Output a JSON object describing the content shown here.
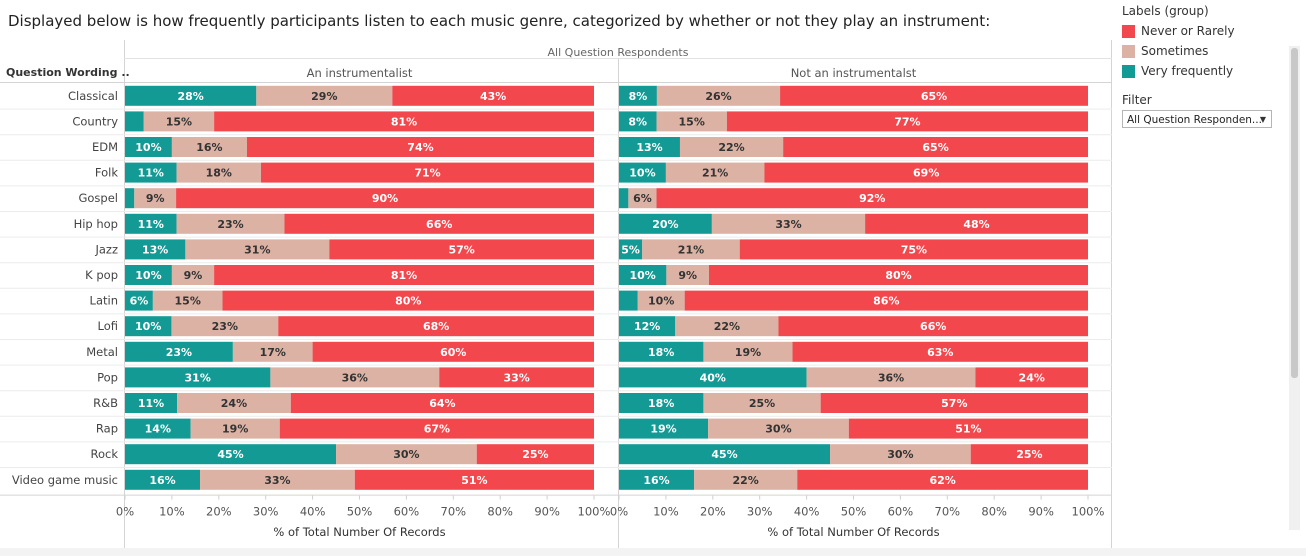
{
  "title": "Displayed below is how frequently participants listen to each music genre, categorized by whether or not they play an instrument:",
  "legend": {
    "title": "Labels (group)",
    "items": [
      {
        "label": "Never or Rarely",
        "color": "#f2484d"
      },
      {
        "label": "Sometimes",
        "color": "#dbb2a4"
      },
      {
        "label": "Very frequently",
        "color": "#149a94"
      }
    ]
  },
  "filter": {
    "title": "Filter",
    "value": "All Question Responden..."
  },
  "chart_data": {
    "type": "bar",
    "orientation": "horizontal",
    "stacked": true,
    "header": "All Question Respondents",
    "row_header": "Question Wording ..",
    "xlabel": "% of Total Number Of Records",
    "xlim": [
      0,
      100
    ],
    "x_ticks": [
      "0%",
      "10%",
      "20%",
      "30%",
      "40%",
      "50%",
      "60%",
      "70%",
      "80%",
      "90%",
      "100%"
    ],
    "categories": [
      "Classical",
      "Country",
      "EDM",
      "Folk",
      "Gospel",
      "Hip hop",
      "Jazz",
      "K pop",
      "Latin",
      "Lofi",
      "Metal",
      "Pop",
      "R&B",
      "Rap",
      "Rock",
      "Video game music"
    ],
    "series_order": [
      "Very frequently",
      "Sometimes",
      "Never or Rarely"
    ],
    "panels": [
      {
        "name": "An instrumentalist",
        "very_frequently": [
          28,
          4,
          10,
          11,
          2,
          11,
          13,
          10,
          6,
          10,
          23,
          31,
          11,
          14,
          45,
          16
        ],
        "sometimes": [
          29,
          15,
          16,
          18,
          9,
          23,
          31,
          9,
          15,
          23,
          17,
          36,
          24,
          19,
          30,
          33
        ],
        "never_or_rarely": [
          43,
          81,
          74,
          71,
          90,
          66,
          57,
          81,
          80,
          68,
          60,
          33,
          64,
          67,
          25,
          51
        ],
        "labels": {
          "very_frequently": [
            "28%",
            "",
            "10%",
            "11%",
            "",
            "11%",
            "13%",
            "10%",
            "6%",
            "10%",
            "23%",
            "31%",
            "11%",
            "14%",
            "45%",
            "16%"
          ],
          "sometimes": [
            "29%",
            "15%",
            "16%",
            "18%",
            "9%",
            "23%",
            "31%",
            "9%",
            "15%",
            "23%",
            "17%",
            "36%",
            "24%",
            "19%",
            "30%",
            "33%"
          ],
          "never_or_rarely": [
            "43%",
            "81%",
            "74%",
            "71%",
            "90%",
            "66%",
            "57%",
            "81%",
            "80%",
            "68%",
            "60%",
            "33%",
            "64%",
            "67%",
            "25%",
            "51%"
          ]
        }
      },
      {
        "name": "Not an instrumentalst",
        "very_frequently": [
          8,
          8,
          13,
          10,
          2,
          20,
          5,
          10,
          4,
          12,
          18,
          40,
          18,
          19,
          45,
          16
        ],
        "sometimes": [
          26,
          15,
          22,
          21,
          6,
          33,
          21,
          9,
          10,
          22,
          19,
          36,
          25,
          30,
          30,
          22
        ],
        "never_or_rarely": [
          65,
          77,
          65,
          69,
          92,
          48,
          75,
          80,
          86,
          66,
          63,
          24,
          57,
          51,
          25,
          62
        ],
        "labels": {
          "very_frequently": [
            "8%",
            "8%",
            "13%",
            "10%",
            "",
            "20%",
            "5%",
            "10%",
            "",
            "12%",
            "18%",
            "40%",
            "18%",
            "19%",
            "45%",
            "16%"
          ],
          "sometimes": [
            "26%",
            "15%",
            "22%",
            "21%",
            "6%",
            "33%",
            "21%",
            "9%",
            "10%",
            "22%",
            "19%",
            "36%",
            "25%",
            "30%",
            "30%",
            "22%"
          ],
          "never_or_rarely": [
            "65%",
            "77%",
            "65%",
            "69%",
            "92%",
            "48%",
            "75%",
            "80%",
            "86%",
            "66%",
            "63%",
            "24%",
            "57%",
            "51%",
            "25%",
            "62%"
          ]
        }
      }
    ]
  }
}
